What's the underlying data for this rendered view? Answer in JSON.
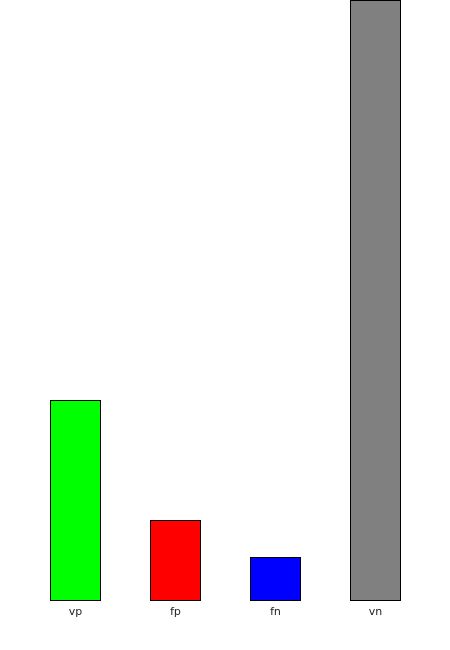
{
  "chart_data": {
    "type": "bar",
    "categories": [
      "vp",
      "fp",
      "fn",
      "vn"
    ],
    "values": [
      200,
      80,
      43,
      600
    ],
    "colors": [
      "#00ff00",
      "#ff0000",
      "#0000ff",
      "#808080"
    ],
    "ylim": [
      0,
      600
    ],
    "grid": false,
    "legend": "none"
  }
}
